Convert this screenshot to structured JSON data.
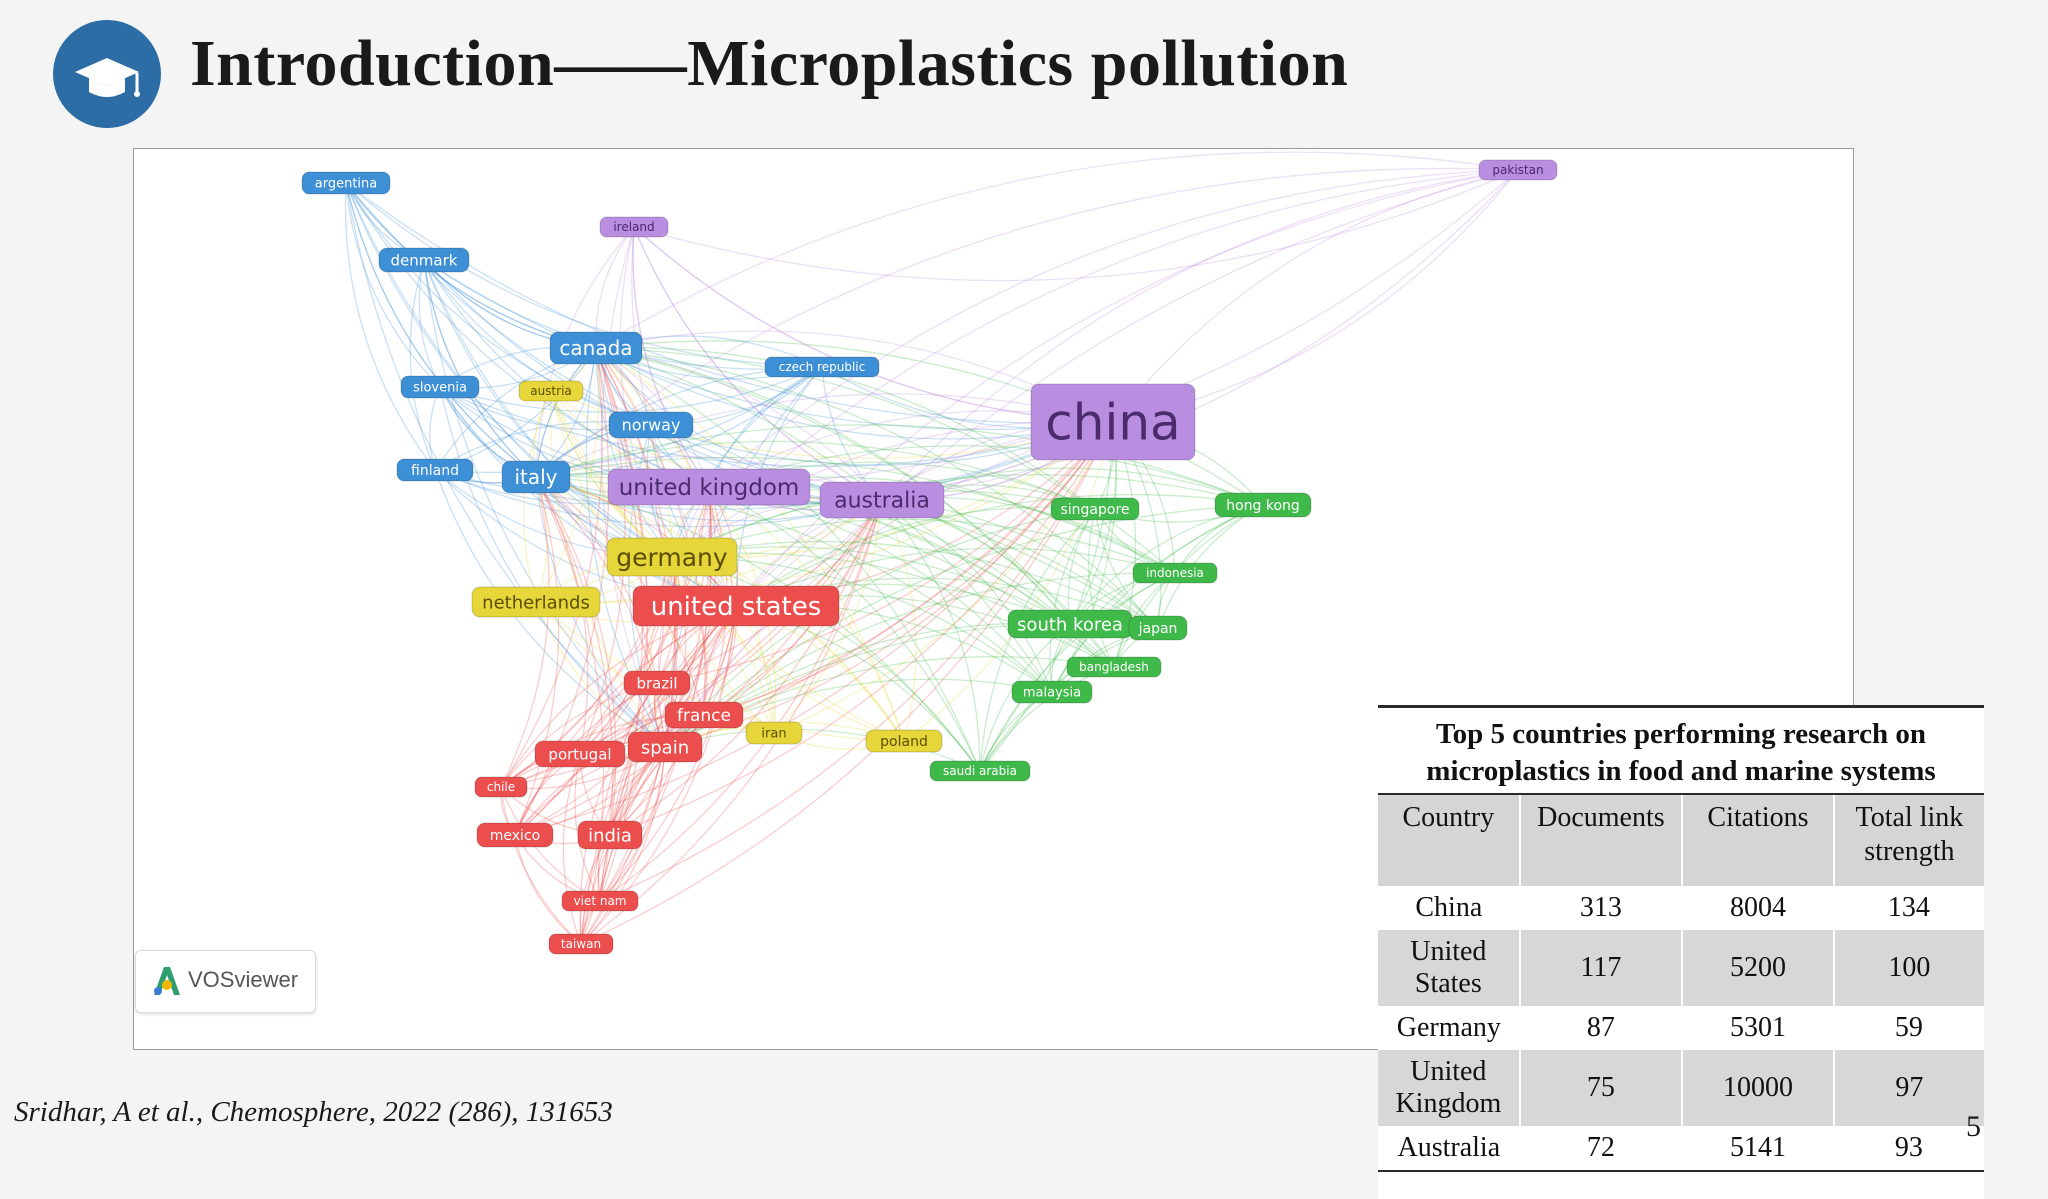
{
  "slide": {
    "title": "Introduction——Microplastics pollution",
    "icon": "graduation-cap-icon",
    "citation": "Sridhar, A et al., Chemosphere, 2022 (286), 131653",
    "page_number": "5"
  },
  "network": {
    "tool": "VOSviewer",
    "clusters": {
      "blue": "#3d8fd6",
      "purple": "#b98de0",
      "yellow": "#e6d63a",
      "red": "#ec4d4d",
      "green": "#3fba4a"
    },
    "nodes": [
      {
        "label": "argentina",
        "cluster": "blue"
      },
      {
        "label": "denmark",
        "cluster": "blue"
      },
      {
        "label": "canada",
        "cluster": "blue"
      },
      {
        "label": "slovenia",
        "cluster": "blue"
      },
      {
        "label": "norway",
        "cluster": "blue"
      },
      {
        "label": "finland",
        "cluster": "blue"
      },
      {
        "label": "italy",
        "cluster": "blue"
      },
      {
        "label": "czech republic",
        "cluster": "blue"
      },
      {
        "label": "ireland",
        "cluster": "purple"
      },
      {
        "label": "united kingdom",
        "cluster": "purple"
      },
      {
        "label": "australia",
        "cluster": "purple"
      },
      {
        "label": "china",
        "cluster": "purple"
      },
      {
        "label": "pakistan",
        "cluster": "purple"
      },
      {
        "label": "austria",
        "cluster": "yellow"
      },
      {
        "label": "germany",
        "cluster": "yellow"
      },
      {
        "label": "netherlands",
        "cluster": "yellow"
      },
      {
        "label": "iran",
        "cluster": "yellow"
      },
      {
        "label": "poland",
        "cluster": "yellow"
      },
      {
        "label": "united states",
        "cluster": "red"
      },
      {
        "label": "brazil",
        "cluster": "red"
      },
      {
        "label": "france",
        "cluster": "red"
      },
      {
        "label": "portugal",
        "cluster": "red"
      },
      {
        "label": "spain",
        "cluster": "red"
      },
      {
        "label": "chile",
        "cluster": "red"
      },
      {
        "label": "mexico",
        "cluster": "red"
      },
      {
        "label": "india",
        "cluster": "red"
      },
      {
        "label": "viet nam",
        "cluster": "red"
      },
      {
        "label": "taiwan",
        "cluster": "red"
      },
      {
        "label": "singapore",
        "cluster": "green"
      },
      {
        "label": "hong kong",
        "cluster": "green"
      },
      {
        "label": "indonesia",
        "cluster": "green"
      },
      {
        "label": "south korea",
        "cluster": "green"
      },
      {
        "label": "japan",
        "cluster": "green"
      },
      {
        "label": "bangladesh",
        "cluster": "green"
      },
      {
        "label": "malaysia",
        "cluster": "green"
      },
      {
        "label": "saudi arabia",
        "cluster": "green"
      }
    ]
  },
  "table": {
    "title": "Top 5 countries performing research on microplastics in food and marine systems",
    "columns": [
      "Country",
      "Documents",
      "Citations",
      "Total link strength"
    ],
    "rows": [
      {
        "country": "China",
        "documents": "313",
        "citations": "8004",
        "tls": "134"
      },
      {
        "country": "United States",
        "documents": "117",
        "citations": "5200",
        "tls": "100"
      },
      {
        "country": "Germany",
        "documents": "87",
        "citations": "5301",
        "tls": "59"
      },
      {
        "country": "United Kingdom",
        "documents": "75",
        "citations": "10000",
        "tls": "97"
      },
      {
        "country": "Australia",
        "documents": "72",
        "citations": "5141",
        "tls": "93"
      }
    ]
  }
}
